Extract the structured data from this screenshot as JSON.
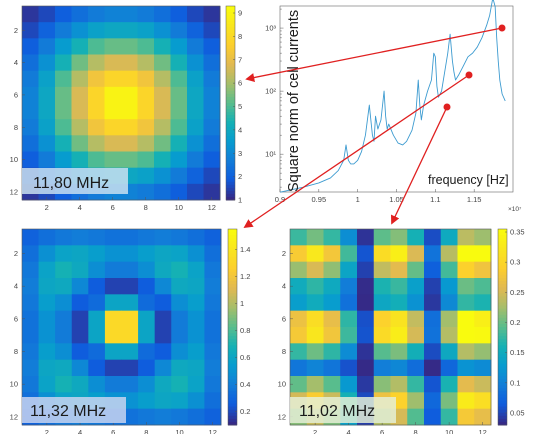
{
  "chart_data": [
    {
      "type": "heatmap",
      "title": "11,80 MHz",
      "x_ticks": [
        "2",
        "4",
        "6",
        "8",
        "10",
        "12"
      ],
      "y_ticks": [
        "2",
        "4",
        "6",
        "8",
        "10",
        "12"
      ],
      "colorbar_ticks": [
        "1",
        "2",
        "3",
        "4",
        "5",
        "6",
        "7",
        "8",
        "9"
      ],
      "color_range": [
        1,
        9.3
      ],
      "rows": 12,
      "cols": 12,
      "values": [
        [
          1.2,
          1.5,
          1.9,
          2.3,
          2.6,
          2.8,
          2.8,
          2.6,
          2.3,
          1.9,
          1.5,
          1.2
        ],
        [
          1.5,
          2.0,
          2.6,
          3.2,
          3.7,
          3.9,
          3.9,
          3.7,
          3.2,
          2.6,
          2.0,
          1.5
        ],
        [
          1.9,
          2.6,
          3.5,
          4.3,
          5.0,
          5.3,
          5.3,
          5.0,
          4.3,
          3.5,
          2.6,
          1.9
        ],
        [
          2.3,
          3.2,
          4.3,
          5.4,
          6.2,
          6.7,
          6.7,
          6.2,
          5.4,
          4.3,
          3.2,
          2.3
        ],
        [
          2.6,
          3.7,
          5.0,
          6.2,
          7.3,
          7.9,
          7.9,
          7.3,
          6.2,
          5.0,
          3.7,
          2.6
        ],
        [
          2.8,
          3.9,
          5.3,
          6.7,
          7.9,
          9.0,
          9.0,
          7.9,
          6.7,
          5.3,
          3.9,
          2.8
        ],
        [
          2.8,
          3.9,
          5.3,
          6.7,
          7.9,
          9.0,
          9.0,
          7.9,
          6.7,
          5.3,
          3.9,
          2.8
        ],
        [
          2.6,
          3.7,
          5.0,
          6.2,
          7.3,
          7.9,
          7.9,
          7.3,
          6.2,
          5.0,
          3.7,
          2.6
        ],
        [
          2.3,
          3.2,
          4.3,
          5.4,
          6.2,
          6.7,
          6.7,
          6.2,
          5.4,
          4.3,
          3.2,
          2.3
        ],
        [
          1.9,
          2.6,
          3.5,
          4.3,
          5.0,
          5.3,
          5.3,
          5.0,
          4.3,
          3.5,
          2.6,
          1.9
        ],
        [
          1.5,
          2.0,
          2.6,
          3.2,
          3.7,
          3.9,
          3.9,
          3.7,
          3.2,
          2.6,
          2.0,
          1.5
        ],
        [
          1.2,
          1.5,
          1.9,
          2.3,
          2.6,
          2.8,
          2.8,
          2.6,
          2.3,
          1.9,
          1.5,
          1.2
        ]
      ]
    },
    {
      "type": "line",
      "ylabel": "Square norm of cell currents",
      "xlabel": "frequency [Hz]",
      "x_multiplier": "×10⁷",
      "x_ticks": [
        "0.9",
        "0.95",
        "1",
        "1.05",
        "1.1",
        "1.15"
      ],
      "y_ticks": [
        "10¹",
        "10²",
        "10³"
      ],
      "y_scale": "log",
      "xlim": [
        0.9,
        1.2
      ],
      "ylim_log10": [
        0.4,
        3.35
      ],
      "x": [
        0.9,
        0.93,
        0.95,
        0.965,
        0.975,
        0.982,
        0.985,
        0.988,
        0.991,
        0.995,
        1.0,
        1.005,
        1.01,
        1.015,
        1.019,
        1.021,
        1.023,
        1.026,
        1.03,
        1.034,
        1.036,
        1.038,
        1.04,
        1.046,
        1.052,
        1.058,
        1.063,
        1.07,
        1.075,
        1.078,
        1.08,
        1.082,
        1.085,
        1.09,
        1.095,
        1.098,
        1.1,
        1.102,
        1.104,
        1.108,
        1.112,
        1.116,
        1.119,
        1.122,
        1.124,
        1.126,
        1.13,
        1.136,
        1.142,
        1.148,
        1.154,
        1.16,
        1.166,
        1.17,
        1.174,
        1.177,
        1.179,
        1.181,
        1.183,
        1.186,
        1.19
      ],
      "y": [
        2.5,
        3.0,
        3.5,
        4.2,
        5.5,
        8.0,
        14.0,
        8.0,
        7.0,
        7.0,
        8.0,
        11.0,
        20.0,
        60.0,
        20.0,
        16.0,
        40.0,
        25.0,
        35.0,
        100.0,
        40.0,
        25.0,
        30.0,
        20.0,
        15.0,
        14.0,
        16.0,
        24.0,
        45.0,
        150.0,
        60.0,
        35.0,
        60.0,
        100.0,
        150.0,
        400.0,
        350.0,
        120.0,
        80.0,
        100.0,
        200.0,
        400.0,
        800.0,
        300.0,
        200.0,
        150.0,
        180.0,
        250.0,
        350.0,
        400.0,
        500.0,
        700.0,
        1100.0,
        1600.0,
        3000.0,
        2200.0,
        700.0,
        300.0,
        150.0,
        90.0,
        70.0
      ]
    },
    {
      "type": "heatmap",
      "title": "11,32 MHz",
      "x_ticks": [
        "2",
        "4",
        "6",
        "8",
        "10",
        "12"
      ],
      "y_ticks": [
        "2",
        "4",
        "6",
        "8",
        "10",
        "12"
      ],
      "colorbar_ticks": [
        "0.2",
        "0.4",
        "0.6",
        "0.8",
        "1",
        "1.2",
        "1.4"
      ],
      "color_range": [
        0.1,
        1.55
      ],
      "rows": 12,
      "cols": 12,
      "values": [
        [
          0.27,
          0.33,
          0.37,
          0.39,
          0.37,
          0.34,
          0.34,
          0.37,
          0.39,
          0.37,
          0.33,
          0.27
        ],
        [
          0.33,
          0.48,
          0.58,
          0.6,
          0.55,
          0.49,
          0.49,
          0.55,
          0.6,
          0.58,
          0.48,
          0.33
        ],
        [
          0.37,
          0.58,
          0.68,
          0.62,
          0.47,
          0.38,
          0.38,
          0.47,
          0.62,
          0.68,
          0.58,
          0.37
        ],
        [
          0.39,
          0.6,
          0.62,
          0.44,
          0.25,
          0.17,
          0.17,
          0.25,
          0.44,
          0.62,
          0.6,
          0.39
        ],
        [
          0.37,
          0.55,
          0.47,
          0.25,
          0.31,
          0.59,
          0.59,
          0.31,
          0.25,
          0.47,
          0.55,
          0.37
        ],
        [
          0.34,
          0.49,
          0.38,
          0.17,
          0.59,
          1.33,
          1.33,
          0.59,
          0.17,
          0.38,
          0.49,
          0.34
        ],
        [
          0.34,
          0.49,
          0.38,
          0.17,
          0.59,
          1.33,
          1.33,
          0.59,
          0.17,
          0.38,
          0.49,
          0.34
        ],
        [
          0.37,
          0.55,
          0.47,
          0.25,
          0.31,
          0.59,
          0.59,
          0.31,
          0.25,
          0.47,
          0.55,
          0.37
        ],
        [
          0.39,
          0.6,
          0.62,
          0.44,
          0.25,
          0.17,
          0.17,
          0.25,
          0.44,
          0.62,
          0.6,
          0.39
        ],
        [
          0.37,
          0.58,
          0.68,
          0.62,
          0.47,
          0.38,
          0.38,
          0.47,
          0.62,
          0.68,
          0.58,
          0.37
        ],
        [
          0.33,
          0.48,
          0.58,
          0.6,
          0.55,
          0.49,
          0.49,
          0.55,
          0.6,
          0.58,
          0.48,
          0.33
        ],
        [
          0.27,
          0.33,
          0.37,
          0.39,
          0.37,
          0.34,
          0.34,
          0.37,
          0.39,
          0.37,
          0.33,
          0.27
        ]
      ]
    },
    {
      "type": "heatmap",
      "title": "11,02 MHz",
      "x_ticks": [
        "2",
        "4",
        "6",
        "8",
        "10",
        "12"
      ],
      "y_ticks": [
        "2",
        "4",
        "6",
        "8",
        "10",
        "12"
      ],
      "colorbar_ticks": [
        "0.05",
        "0.1",
        "0.15",
        "0.2",
        "0.25",
        "0.3",
        "0.35"
      ],
      "color_range": [
        0.03,
        0.355
      ],
      "rows": 12,
      "cols": 12,
      "values": [
        [
          0.178,
          0.204,
          0.175,
          0.113,
          0.036,
          0.194,
          0.211,
          0.159,
          0.053,
          0.147,
          0.237,
          0.222
        ],
        [
          0.285,
          0.327,
          0.279,
          0.181,
          0.058,
          0.31,
          0.337,
          0.254,
          0.085,
          0.235,
          0.379,
          0.355
        ],
        [
          0.22,
          0.253,
          0.216,
          0.14,
          0.045,
          0.24,
          0.261,
          0.197,
          0.066,
          0.182,
          0.294,
          0.275
        ],
        [
          0.15,
          0.172,
          0.147,
          0.095,
          0.031,
          0.163,
          0.177,
          0.134,
          0.045,
          0.124,
          0.2,
          0.187
        ],
        [
          0.131,
          0.15,
          0.129,
          0.083,
          0.027,
          0.143,
          0.155,
          0.117,
          0.039,
          0.108,
          0.174,
          0.163
        ],
        [
          0.271,
          0.311,
          0.266,
          0.172,
          0.055,
          0.295,
          0.32,
          0.241,
          0.081,
          0.224,
          0.36,
          0.338
        ],
        [
          0.282,
          0.324,
          0.277,
          0.179,
          0.057,
          0.307,
          0.334,
          0.251,
          0.084,
          0.233,
          0.375,
          0.352
        ],
        [
          0.175,
          0.201,
          0.172,
          0.111,
          0.036,
          0.191,
          0.207,
          0.156,
          0.052,
          0.145,
          0.233,
          0.218
        ],
        [
          0.088,
          0.102,
          0.087,
          0.056,
          0.018,
          0.096,
          0.105,
          0.079,
          0.026,
          0.073,
          0.118,
          0.11
        ],
        [
          0.196,
          0.225,
          0.192,
          0.124,
          0.04,
          0.213,
          0.232,
          0.175,
          0.058,
          0.162,
          0.261,
          0.245
        ],
        [
          0.25,
          0.287,
          0.245,
          0.159,
          0.051,
          0.272,
          0.295,
          0.223,
          0.074,
          0.206,
          0.332,
          0.312
        ],
        [
          0.212,
          0.243,
          0.208,
          0.135,
          0.043,
          0.231,
          0.251,
          0.189,
          0.063,
          0.175,
          0.282,
          0.265
        ]
      ]
    }
  ]
}
